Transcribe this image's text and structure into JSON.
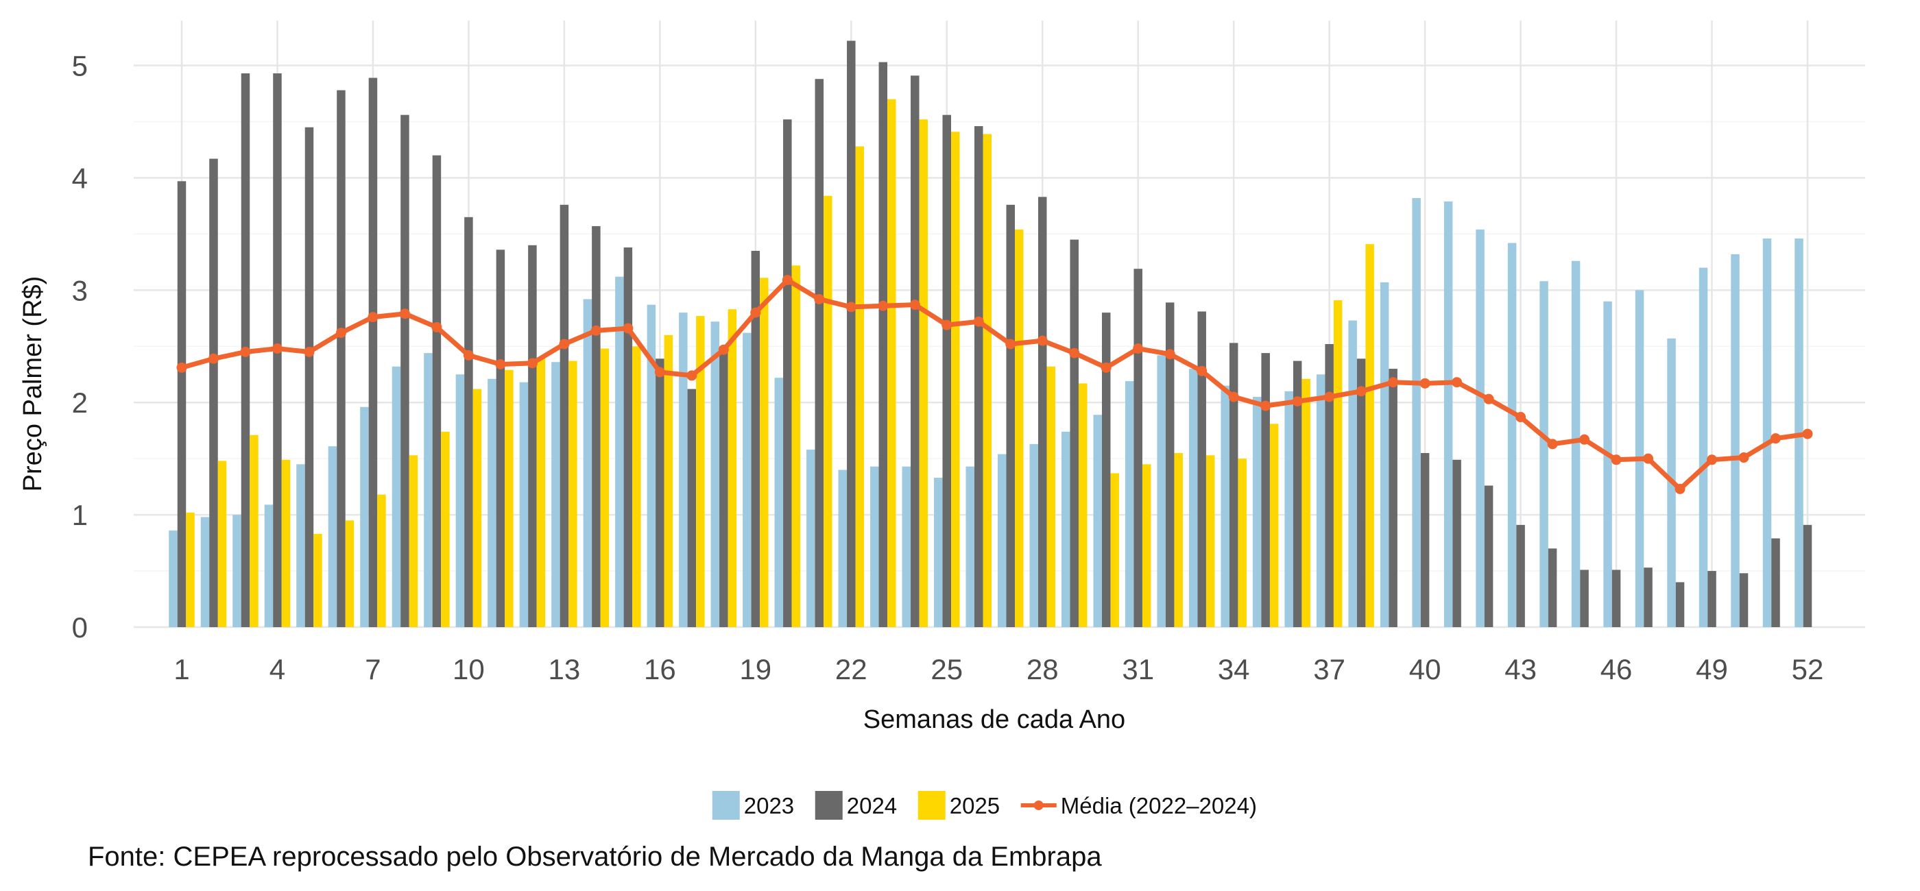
{
  "chart_data": {
    "type": "bar",
    "xlabel": "Semanas de cada Ano",
    "ylabel": "Preço Palmer (R$)",
    "ylim": [
      0,
      5.4
    ],
    "y_ticks": [
      "0",
      "1",
      "2",
      "3",
      "4",
      "5"
    ],
    "x_ticks": [
      "1",
      "4",
      "7",
      "10",
      "13",
      "16",
      "19",
      "22",
      "25",
      "28",
      "31",
      "34",
      "37",
      "40",
      "43",
      "46",
      "49",
      "52"
    ],
    "x": [
      1,
      2,
      3,
      4,
      5,
      6,
      7,
      8,
      9,
      10,
      11,
      12,
      13,
      14,
      15,
      16,
      17,
      18,
      19,
      20,
      21,
      22,
      23,
      24,
      25,
      26,
      27,
      28,
      29,
      30,
      31,
      32,
      33,
      34,
      35,
      36,
      37,
      38,
      39,
      40,
      41,
      42,
      43,
      44,
      45,
      46,
      47,
      48,
      49,
      50,
      51,
      52
    ],
    "grid": true,
    "legend_position": "bottom",
    "series": [
      {
        "name": "2023",
        "color": "#9ECAE1",
        "values": [
          0.86,
          0.98,
          1.0,
          1.09,
          1.45,
          1.61,
          1.96,
          2.32,
          2.44,
          2.25,
          2.21,
          2.18,
          2.36,
          2.92,
          3.12,
          2.87,
          2.8,
          2.72,
          2.62,
          2.22,
          1.58,
          1.4,
          1.43,
          1.43,
          1.33,
          1.43,
          1.54,
          1.63,
          1.74,
          1.89,
          2.19,
          2.42,
          2.3,
          2.15,
          2.05,
          2.1,
          2.25,
          2.73,
          3.07,
          3.82,
          3.79,
          3.54,
          3.42,
          3.08,
          3.26,
          2.9,
          3.0,
          2.57,
          3.2,
          3.32,
          3.46,
          3.46
        ]
      },
      {
        "name": "2024",
        "color": "#696969",
        "values": [
          3.97,
          4.17,
          4.93,
          4.93,
          4.45,
          4.78,
          4.89,
          4.56,
          4.2,
          3.65,
          3.36,
          3.4,
          3.76,
          3.57,
          3.38,
          2.39,
          2.12,
          2.5,
          3.35,
          4.52,
          4.88,
          5.22,
          5.03,
          4.91,
          4.56,
          4.46,
          3.76,
          3.83,
          3.45,
          2.8,
          3.19,
          2.89,
          2.81,
          2.53,
          2.44,
          2.37,
          2.52,
          2.39,
          2.3,
          1.55,
          1.49,
          1.26,
          0.91,
          0.7,
          0.51,
          0.51,
          0.53,
          0.4,
          0.5,
          0.48,
          0.79,
          0.91
        ]
      },
      {
        "name": "2025",
        "color": "#FFD700",
        "values": [
          1.02,
          1.48,
          1.71,
          1.49,
          0.83,
          0.95,
          1.18,
          1.53,
          1.74,
          2.12,
          2.29,
          2.4,
          2.37,
          2.48,
          2.5,
          2.6,
          2.77,
          2.83,
          3.11,
          3.22,
          3.84,
          4.28,
          4.7,
          4.52,
          4.41,
          4.39,
          3.54,
          2.32,
          2.17,
          1.37,
          1.45,
          1.55,
          1.53,
          1.5,
          1.81,
          2.21,
          2.91,
          3.41,
          null,
          null,
          null,
          null,
          null,
          null,
          null,
          null,
          null,
          null,
          null,
          null,
          null,
          null
        ]
      },
      {
        "name": "Média (2022–2024)",
        "color": "#F0642D",
        "type": "line",
        "values": [
          2.31,
          2.39,
          2.45,
          2.48,
          2.45,
          2.62,
          2.76,
          2.79,
          2.67,
          2.42,
          2.34,
          2.35,
          2.52,
          2.64,
          2.66,
          2.27,
          2.24,
          2.47,
          2.8,
          3.09,
          2.92,
          2.85,
          2.86,
          2.87,
          2.69,
          2.72,
          2.52,
          2.55,
          2.44,
          2.31,
          2.48,
          2.43,
          2.28,
          2.05,
          1.97,
          2.01,
          2.05,
          2.1,
          2.18,
          2.17,
          2.18,
          2.03,
          1.87,
          1.63,
          1.67,
          1.49,
          1.5,
          1.23,
          1.49,
          1.51,
          1.68,
          1.72
        ]
      }
    ]
  },
  "caption": "Fonte: CEPEA reprocessado pelo Observatório de Mercado da Manga da Embrapa"
}
